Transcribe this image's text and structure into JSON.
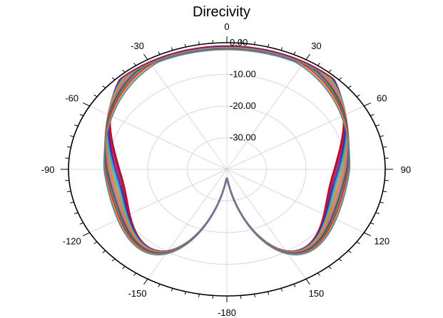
{
  "chart_data": {
    "type": "line",
    "polar": true,
    "title": "Direcivity",
    "angle_ticks": [
      {
        "value": 0,
        "label": "0"
      },
      {
        "value": 30,
        "label": "30"
      },
      {
        "value": 60,
        "label": "60"
      },
      {
        "value": 90,
        "label": "90"
      },
      {
        "value": 120,
        "label": "120"
      },
      {
        "value": 150,
        "label": "150"
      },
      {
        "value": 180,
        "label": "-180"
      },
      {
        "value": -150,
        "label": "-150"
      },
      {
        "value": -120,
        "label": "-120"
      },
      {
        "value": -90,
        "label": "-90"
      },
      {
        "value": -60,
        "label": "-60"
      },
      {
        "value": -30,
        "label": "-30"
      }
    ],
    "radial_ticks": [
      {
        "value": 0,
        "label": "0.00"
      },
      {
        "value": -10,
        "label": "-10.00"
      },
      {
        "value": -20,
        "label": "-20.00"
      },
      {
        "value": -30,
        "label": "-30.00"
      }
    ],
    "rlim": [
      -40,
      0
    ],
    "grid": true,
    "series_colors": [
      "#b0102a",
      "#cc1040",
      "#8a1a8a",
      "#1f2fa8",
      "#2a9ab0",
      "#5aa0d0",
      "#b8a040",
      "#d08020",
      "#e070a0",
      "#708090",
      "#803020",
      "#20a080",
      "#c02060",
      "#ff8c00",
      "#4682b4"
    ],
    "series_params": [
      {
        "b": 40,
        "cs": 0.72,
        "cb": 0.32
      },
      {
        "b": 43,
        "cs": 0.78,
        "cb": 0.35
      },
      {
        "b": 46,
        "cs": 0.84,
        "cb": 0.38
      },
      {
        "b": 49,
        "cs": 0.9,
        "cb": 0.41
      },
      {
        "b": 52,
        "cs": 0.95,
        "cb": 0.43
      },
      {
        "b": 55,
        "cs": 1.0,
        "cb": 0.45
      },
      {
        "b": 58,
        "cs": 1.05,
        "cb": 0.47
      },
      {
        "b": 61,
        "cs": 1.1,
        "cb": 0.49
      },
      {
        "b": 64,
        "cs": 1.15,
        "cb": 0.51
      },
      {
        "b": 67,
        "cs": 1.2,
        "cb": 0.53
      },
      {
        "b": 70,
        "cs": 1.25,
        "cb": 0.55
      },
      {
        "b": 73,
        "cs": 1.3,
        "cb": 0.57
      },
      {
        "b": 76,
        "cs": 1.35,
        "cb": 0.59
      },
      {
        "b": 79,
        "cs": 1.4,
        "cb": 0.61
      },
      {
        "b": 82,
        "cs": 1.45,
        "cb": 0.63
      }
    ]
  }
}
